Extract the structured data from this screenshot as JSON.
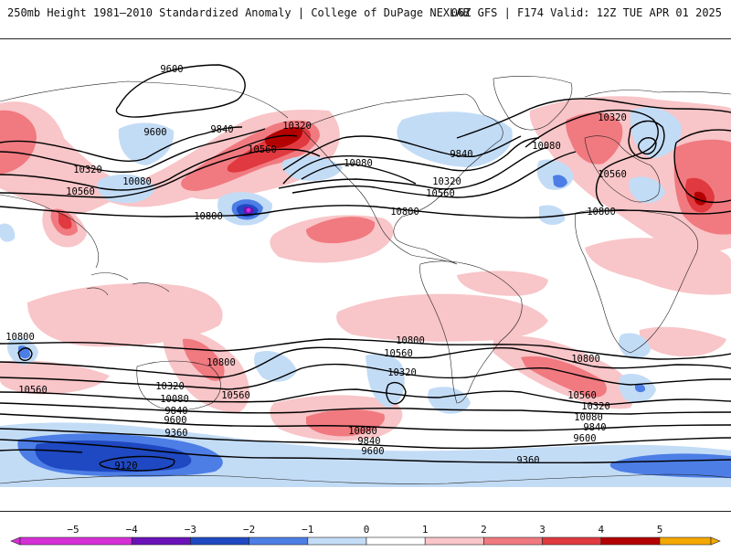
{
  "header": {
    "left_title": "250mb Height 1981–2010 Standardized Anomaly | College of DuPage NEXLAB",
    "right_title": "06Z GFS | F174 Valid: 12Z TUE APR 01 2025"
  },
  "colors": {
    "neg5": "#d52fd6",
    "neg4": "#6a12b8",
    "neg3": "#1f49c2",
    "neg2": "#4d7ee6",
    "neg1": "#c3dcf6",
    "pos1": "#f8c5c8",
    "pos2": "#f07a80",
    "pos3": "#e0393f",
    "pos4": "#b30000",
    "pos5": "#f4a800",
    "land": "#ffffff",
    "contour": "#000000"
  },
  "colorbar": {
    "ticks": [
      "−5",
      "−4",
      "−3",
      "−2",
      "−1",
      "0",
      "1",
      "2",
      "3",
      "4",
      "5"
    ]
  },
  "contour_labels": [
    {
      "id": "c1",
      "text": "9600"
    },
    {
      "id": "c2",
      "text": "9600"
    },
    {
      "id": "c3",
      "text": "9840"
    },
    {
      "id": "c4",
      "text": "10320"
    },
    {
      "id": "c5",
      "text": "10560"
    },
    {
      "id": "c6",
      "text": "10080"
    },
    {
      "id": "c7",
      "text": "10320"
    },
    {
      "id": "c8",
      "text": "10560"
    },
    {
      "id": "c9",
      "text": "10800"
    },
    {
      "id": "c10",
      "text": "10080"
    },
    {
      "id": "c11",
      "text": "9840"
    },
    {
      "id": "c12",
      "text": "10320"
    },
    {
      "id": "c13",
      "text": "10560"
    },
    {
      "id": "c14",
      "text": "10800"
    },
    {
      "id": "c15",
      "text": "10320"
    },
    {
      "id": "c16",
      "text": "10080"
    },
    {
      "id": "c17",
      "text": "10560"
    },
    {
      "id": "c18",
      "text": "10800"
    },
    {
      "id": "c19",
      "text": "10800"
    },
    {
      "id": "c20",
      "text": "10560"
    },
    {
      "id": "c21",
      "text": "10800"
    },
    {
      "id": "c22",
      "text": "10320"
    },
    {
      "id": "c23",
      "text": "10560"
    },
    {
      "id": "c24",
      "text": "10080"
    },
    {
      "id": "c25",
      "text": "9840"
    },
    {
      "id": "c26",
      "text": "9600"
    },
    {
      "id": "c27",
      "text": "9360"
    },
    {
      "id": "c28",
      "text": "9120"
    },
    {
      "id": "c29",
      "text": "10800"
    },
    {
      "id": "c30",
      "text": "10560"
    },
    {
      "id": "c31",
      "text": "10320"
    },
    {
      "id": "c32",
      "text": "10080"
    },
    {
      "id": "c33",
      "text": "9840"
    },
    {
      "id": "c34",
      "text": "9600"
    },
    {
      "id": "c35",
      "text": "10800"
    },
    {
      "id": "c36",
      "text": "10560"
    },
    {
      "id": "c37",
      "text": "10320"
    },
    {
      "id": "c38",
      "text": "10080"
    },
    {
      "id": "c39",
      "text": "9840"
    },
    {
      "id": "c40",
      "text": "9600"
    },
    {
      "id": "c41",
      "text": "9360"
    }
  ]
}
